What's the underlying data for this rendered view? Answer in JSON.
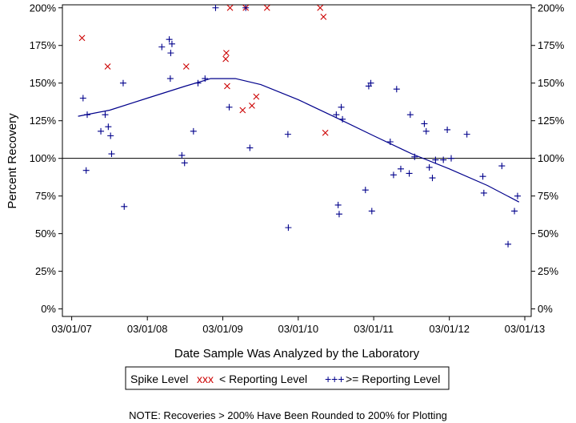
{
  "chart_data": {
    "type": "scatter",
    "xlabel": "Date Sample Was Analyzed by the Laboratory",
    "ylabel": "Percent Recovery",
    "x_tick_labels": [
      "03/01/07",
      "03/01/08",
      "03/01/09",
      "03/01/10",
      "03/01/11",
      "03/01/12",
      "03/01/13"
    ],
    "x_ticks": [
      "2007-03-01",
      "2008-03-01",
      "2009-03-01",
      "2010-03-01",
      "2011-03-01",
      "2012-03-01",
      "2013-03-01"
    ],
    "xlim": [
      "2007-01-15",
      "2013-04-01"
    ],
    "y_tick_labels": [
      "0%",
      "25%",
      "50%",
      "75%",
      "100%",
      "125%",
      "150%",
      "175%",
      "200%"
    ],
    "y_ticks": [
      0,
      25,
      50,
      75,
      100,
      125,
      150,
      175,
      200
    ],
    "ylim": [
      -5,
      202
    ],
    "reference_line": 100,
    "legend": {
      "title": "Spike Level",
      "entries": [
        {
          "label": "< Reporting Level",
          "symbol": "xxx",
          "color": "#cc0000"
        },
        {
          "label": ">= Reporting Level",
          "symbol": "+++",
          "color": "#00008b"
        }
      ]
    },
    "note": "NOTE: Recoveries > 200% Have Been Rounded to 200% for Plotting",
    "series": [
      {
        "name": "< Reporting Level",
        "marker": "x",
        "color": "#cc0000",
        "points": [
          [
            "2007-04-20",
            180
          ],
          [
            "2007-08-22",
            161
          ],
          [
            "2008-09-05",
            161
          ],
          [
            "2009-03-15",
            166
          ],
          [
            "2009-03-18",
            170
          ],
          [
            "2009-03-22",
            148
          ],
          [
            "2009-04-05",
            200
          ],
          [
            "2009-06-05",
            132
          ],
          [
            "2009-06-20",
            200
          ],
          [
            "2009-07-20",
            135
          ],
          [
            "2009-08-10",
            141
          ],
          [
            "2009-10-01",
            200
          ],
          [
            "2010-06-15",
            200
          ],
          [
            "2010-07-01",
            194
          ],
          [
            "2010-07-10",
            117
          ]
        ]
      },
      {
        "name": ">= Reporting Level",
        "marker": "+",
        "color": "#00008b",
        "points": [
          [
            "2007-04-25",
            140
          ],
          [
            "2007-05-10",
            92
          ],
          [
            "2007-05-15",
            129
          ],
          [
            "2007-07-20",
            118
          ],
          [
            "2007-08-10",
            129
          ],
          [
            "2007-08-25",
            121
          ],
          [
            "2007-09-05",
            115
          ],
          [
            "2007-09-10",
            103
          ],
          [
            "2007-11-05",
            150
          ],
          [
            "2007-11-10",
            68
          ],
          [
            "2008-05-10",
            174
          ],
          [
            "2008-06-15",
            179
          ],
          [
            "2008-06-20",
            153
          ],
          [
            "2008-06-22",
            170
          ],
          [
            "2008-06-28",
            176
          ],
          [
            "2008-08-15",
            102
          ],
          [
            "2008-08-28",
            97
          ],
          [
            "2008-10-10",
            118
          ],
          [
            "2008-11-01",
            150
          ],
          [
            "2008-12-05",
            153
          ],
          [
            "2009-01-25",
            200
          ],
          [
            "2009-04-01",
            134
          ],
          [
            "2009-06-20",
            200
          ],
          [
            "2009-07-10",
            107
          ],
          [
            "2010-01-10",
            116
          ],
          [
            "2010-01-12",
            54
          ],
          [
            "2010-09-01",
            129
          ],
          [
            "2010-09-10",
            69
          ],
          [
            "2010-09-15",
            63
          ],
          [
            "2010-09-25",
            134
          ],
          [
            "2010-10-01",
            126
          ],
          [
            "2011-01-20",
            79
          ],
          [
            "2011-02-05",
            148
          ],
          [
            "2011-02-15",
            150
          ],
          [
            "2011-02-20",
            65
          ],
          [
            "2011-05-20",
            111
          ],
          [
            "2011-06-05",
            89
          ],
          [
            "2011-06-20",
            146
          ],
          [
            "2011-07-10",
            93
          ],
          [
            "2011-08-20",
            90
          ],
          [
            "2011-08-25",
            129
          ],
          [
            "2011-09-15",
            101
          ],
          [
            "2011-11-01",
            123
          ],
          [
            "2011-11-10",
            118
          ],
          [
            "2011-11-25",
            94
          ],
          [
            "2011-12-10",
            87
          ],
          [
            "2011-12-25",
            99
          ],
          [
            "2012-02-01",
            99
          ],
          [
            "2012-02-20",
            119
          ],
          [
            "2012-03-10",
            100
          ],
          [
            "2012-05-25",
            116
          ],
          [
            "2012-08-10",
            88
          ],
          [
            "2012-08-15",
            77
          ],
          [
            "2012-11-10",
            95
          ],
          [
            "2012-12-10",
            43
          ],
          [
            "2013-01-10",
            65
          ],
          [
            "2013-01-25",
            75
          ]
        ]
      }
    ],
    "trend_line": {
      "color": "#00008b",
      "points": [
        [
          "2007-04-01",
          128
        ],
        [
          "2007-09-01",
          132
        ],
        [
          "2008-03-01",
          140
        ],
        [
          "2008-09-01",
          148
        ],
        [
          "2009-01-01",
          153
        ],
        [
          "2009-05-01",
          153
        ],
        [
          "2009-09-01",
          149
        ],
        [
          "2010-03-01",
          139
        ],
        [
          "2010-09-01",
          127
        ],
        [
          "2011-03-01",
          115
        ],
        [
          "2011-09-01",
          103
        ],
        [
          "2012-03-01",
          93
        ],
        [
          "2012-09-01",
          82
        ],
        [
          "2013-02-01",
          71
        ]
      ]
    }
  }
}
